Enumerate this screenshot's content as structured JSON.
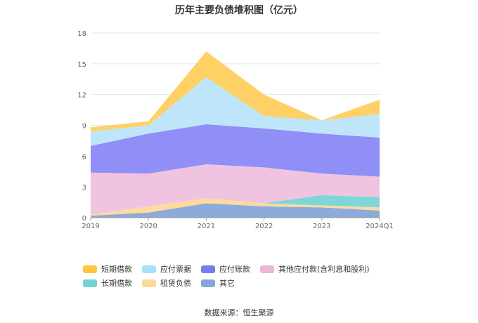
{
  "chart_data": {
    "type": "area",
    "title": "历年主要负债堆积图（亿元）",
    "categories": [
      "2019",
      "2020",
      "2021",
      "2022",
      "2023",
      "2024Q1"
    ],
    "ylim": [
      0,
      18
    ],
    "yticks": [
      0,
      3,
      6,
      9,
      12,
      15,
      18
    ],
    "grid": true,
    "legend_position": "bottom",
    "stacked": true,
    "series": [
      {
        "name": "其它",
        "color": "#8caadb",
        "values": [
          0.2,
          0.5,
          1.4,
          1.1,
          1.0,
          0.7
        ]
      },
      {
        "name": "租赁负债",
        "color": "#fddb9c",
        "values": [
          0.1,
          0.6,
          0.5,
          0.3,
          0.2,
          0.3
        ]
      },
      {
        "name": "长期借款",
        "color": "#7fd6d6",
        "values": [
          0.0,
          0.0,
          0.0,
          0.0,
          1.0,
          1.0
        ]
      },
      {
        "name": "其他应付款(含利息和股利)",
        "color": "#f0c4e0",
        "values": [
          4.1,
          3.2,
          3.3,
          3.5,
          2.1,
          2.0
        ]
      },
      {
        "name": "应付账款",
        "color": "#8f8ff7",
        "values": [
          2.6,
          3.9,
          3.9,
          3.8,
          3.9,
          3.8
        ]
      },
      {
        "name": "应付票据",
        "color": "#bfe5fb",
        "values": [
          1.4,
          0.8,
          4.6,
          1.2,
          1.3,
          2.3
        ]
      },
      {
        "name": "短期借款",
        "color": "#ffd064",
        "values": [
          0.4,
          0.4,
          2.5,
          2.1,
          0.0,
          1.4
        ]
      }
    ],
    "legend_order": [
      "短期借款",
      "应付票据",
      "应付账款",
      "其他应付款(含利息和股利)",
      "长期借款",
      "租赁负债",
      "其它"
    ],
    "legend_colors": {
      "短期借款": "#ffc53d",
      "应付票据": "#a8def9",
      "应付账款": "#7a7af0",
      "其他应付款(含利息和股利)": "#ebb6d9",
      "长期借款": "#72d4d4",
      "租赁负债": "#fcd99a",
      "其它": "#85a5d8"
    }
  },
  "source_text": "数据来源：恒生聚源"
}
